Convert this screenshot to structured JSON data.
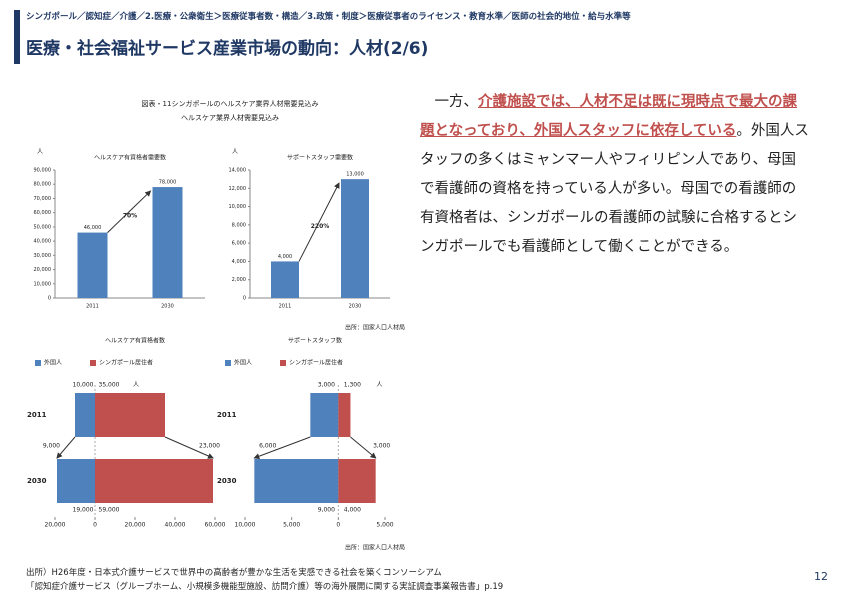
{
  "header": {
    "breadcrumb": "シンガポール／認知症／介護／2.医療・公衆衛生＞医療従事者数・構造／3.政策・制度＞医療従事者のライセンス・教育水準／医師の社会的地位・給与水準等",
    "title": "医療・社会福祉サービス産業市場の動向：人材(2/6)"
  },
  "figure": {
    "title": "図表・11シンガポールのヘルスケア業界人材需要見込み",
    "subtitle": "ヘルスケア業界人材需要見込み",
    "sources": [
      "出所：国家人口人材局",
      "出所：国家人口人材局"
    ],
    "charts": [
      {
        "type": "bar",
        "title": "ヘルスケア有資格者需要数",
        "unit": "人",
        "categories": [
          "2011",
          "2030"
        ],
        "values": [
          46000,
          78000
        ],
        "value_labels": [
          "46,000",
          "78,000"
        ],
        "color": "#4f81bd",
        "ylim": [
          0,
          90000
        ],
        "yticks": [
          0,
          {
            "value": 10000,
            "label": "10,000"
          },
          {
            "value": 20000,
            "label": "20,000"
          },
          {
            "value": 30000,
            "label": "30,000"
          },
          {
            "value": 40000,
            "label": "40,000"
          },
          {
            "value": 50000,
            "label": "50,000"
          },
          {
            "value": 60000,
            "label": "60,000"
          },
          {
            "value": 70000,
            "label": "70,000"
          },
          {
            "value": 80000,
            "label": "80,000"
          },
          {
            "value": 90000,
            "label": "90,000"
          }
        ],
        "growth": 70,
        "growth_label": "70%"
      },
      {
        "type": "bar",
        "title": "サポートスタッフ需要数",
        "unit": "人",
        "categories": [
          "2011",
          "2030"
        ],
        "values": [
          4000,
          13000
        ],
        "value_labels": [
          "4,000",
          "13,000"
        ],
        "color": "#4f81bd",
        "ylim": [
          0,
          14000
        ],
        "yticks": [
          0,
          {
            "value": 2000,
            "label": "2,000"
          },
          {
            "value": 4000,
            "label": "4,000"
          },
          {
            "value": 6000,
            "label": "6,000"
          },
          {
            "value": 8000,
            "label": "8,000"
          },
          {
            "value": 10000,
            "label": "10,000"
          },
          {
            "value": 12000,
            "label": "12,000"
          },
          {
            "value": 14000,
            "label": "14,000"
          }
        ],
        "growth": 220,
        "growth_label": "220%"
      },
      {
        "type": "diverging_bar",
        "title": "ヘルスケア有資格者数",
        "unit": "人",
        "categories": [
          "2011",
          "2030"
        ],
        "series": [
          {
            "name": "外国人",
            "color": "#4f81bd",
            "values": [
              10000,
              19000
            ],
            "value_labels": [
              "10,000",
              "19,000"
            ]
          },
          {
            "name": "シンガポール居住者",
            "color": "#c0504d",
            "values": [
              35000,
              59000
            ],
            "value_labels": [
              "35,000",
              "59,000"
            ]
          }
        ],
        "increases": [
          9000,
          23000
        ],
        "increase_labels": [
          "9,000",
          "23,000"
        ],
        "xlim": [
          -20000,
          60000
        ],
        "xticks": [
          {
            "value": -20000,
            "label": "20,000"
          },
          0,
          {
            "value": 20000,
            "label": "20,000"
          },
          {
            "value": 40000,
            "label": "40,000"
          },
          {
            "value": 60000,
            "label": "60,000"
          }
        ]
      },
      {
        "type": "diverging_bar",
        "title": "サポートスタッフ数",
        "unit": "人",
        "categories": [
          "2011",
          "2030"
        ],
        "series": [
          {
            "name": "外国人",
            "color": "#4f81bd",
            "values": [
              3000,
              9000
            ],
            "value_labels": [
              "3,000",
              "9,000"
            ]
          },
          {
            "name": "シンガポール居住者",
            "color": "#c0504d",
            "values": [
              1300,
              4000
            ],
            "value_labels": [
              "1,300",
              "4,000"
            ]
          }
        ],
        "increases": [
          6000,
          3000
        ],
        "increase_labels": [
          "6,000",
          "3,000"
        ],
        "xlim": [
          -10000,
          5000
        ],
        "xticks": [
          {
            "value": -10000,
            "label": "10,000"
          },
          {
            "value": -5000,
            "label": "5,000"
          },
          0,
          {
            "value": 5000,
            "label": "5,000"
          }
        ]
      }
    ]
  },
  "body": {
    "segments": [
      {
        "text": "一方、",
        "emphasis": false
      },
      {
        "text": "介護施設では、人材不足は既に現時点で最大の課題となっており、外国人スタッフに依存している",
        "emphasis": true
      },
      {
        "text": "。外国人スタッフの多くはミャンマー人やフィリピン人であり、母国で看護師の資格を持っている人が多い。母国での看護師の有資格者は、シンガポールの看護師の試験に合格するとシンガポールでも看護師として働くことができる。",
        "emphasis": false
      }
    ]
  },
  "footer": {
    "sources": [
      "出所）H26年度・日本式介護サービスで世界中の高齢者が豊かな生活を実感できる社会を築くコンソーシアム",
      "「認知症介護サービス（グループホーム、小規模多機能型施設、訪問介護）等の海外展開に関する実証調査事業報告書」p.19"
    ],
    "page": "12"
  }
}
